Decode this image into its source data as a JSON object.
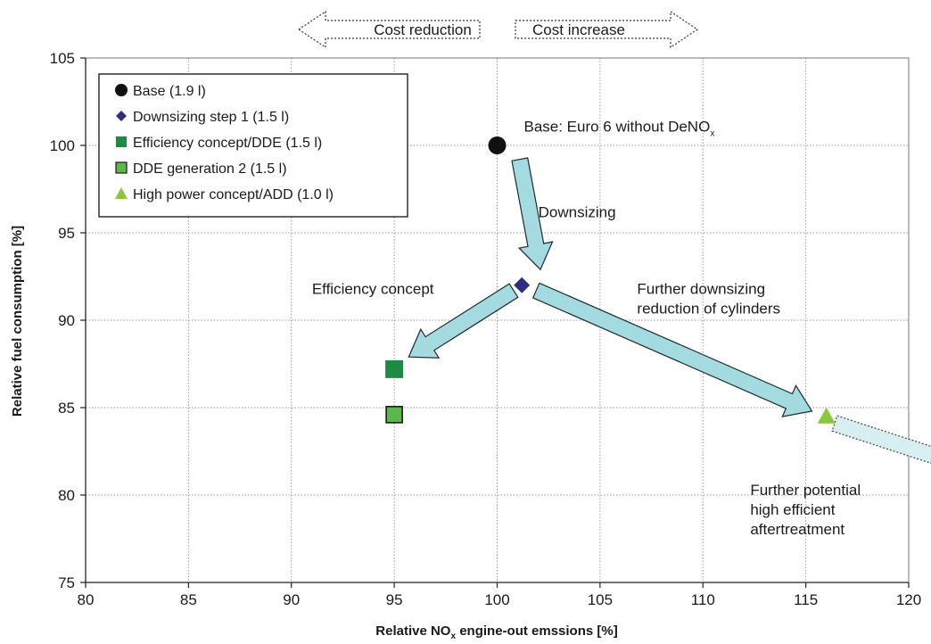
{
  "chart_data": {
    "type": "scatter",
    "title": "",
    "xlabel_main": "Relative NO",
    "xlabel_sub": "x",
    "xlabel_rest": " engine-out emssions [%]",
    "ylabel": "Relative fuel consumption [%]",
    "xlim": [
      80,
      120
    ],
    "ylim": [
      75,
      105
    ],
    "xticks": [
      80,
      85,
      90,
      95,
      100,
      105,
      110,
      115,
      120
    ],
    "yticks": [
      75,
      80,
      85,
      90,
      95,
      100,
      105
    ],
    "grid": true,
    "legend_position": "top-left",
    "series": [
      {
        "name": "Base (1.9 l)",
        "marker": "circle",
        "color": "#111111",
        "x": 100,
        "y": 100
      },
      {
        "name": "Downsizing step 1 (1.5 l)",
        "marker": "diamond",
        "color": "#2e2e80",
        "x": 101.2,
        "y": 92
      },
      {
        "name": "Efficiency concept/DDE (1.5 l)",
        "marker": "square",
        "color": "#1f8a44",
        "x": 95,
        "y": 87.2
      },
      {
        "name": "DDE generation 2 (1.5 l)",
        "marker": "square-outlined",
        "color": "#5cb848",
        "x": 95,
        "y": 84.6
      },
      {
        "name": "High power concept/ADD (1.0 l)",
        "marker": "triangle",
        "color": "#8cc63e",
        "x": 116,
        "y": 84.5
      }
    ],
    "cost_labels": {
      "reduction": "Cost reduction",
      "increase": "Cost increase"
    },
    "annotations": {
      "base": {
        "text": "Base: Euro 6 without DeNO",
        "sub": "x",
        "x": 101.3,
        "y": 100.8
      },
      "downsizing": {
        "text": "Downsizing",
        "x": 102,
        "y": 95.9
      },
      "efficiency": {
        "text": "Efficiency concept",
        "x": 91,
        "y": 91.5
      },
      "further_downsizing": {
        "lines": [
          "Further downsizing",
          "reduction of cylinders"
        ],
        "x": 106.8,
        "y": 91.5
      },
      "potential": {
        "lines": [
          "Further potential",
          "high efficient",
          "aftertreatment"
        ],
        "x": 112.3,
        "y": 80
      }
    },
    "arrows": [
      {
        "from": [
          101.1,
          99.2
        ],
        "to": [
          102.1,
          92.9
        ]
      },
      {
        "from": [
          100.8,
          91.7
        ],
        "to": [
          95.7,
          87.9
        ]
      },
      {
        "from": [
          101.9,
          91.7
        ],
        "to": [
          115.3,
          84.8
        ]
      },
      {
        "from": [
          116.4,
          84.1
        ],
        "to": [
          123.7,
          81.3
        ],
        "dotted": true
      }
    ]
  }
}
